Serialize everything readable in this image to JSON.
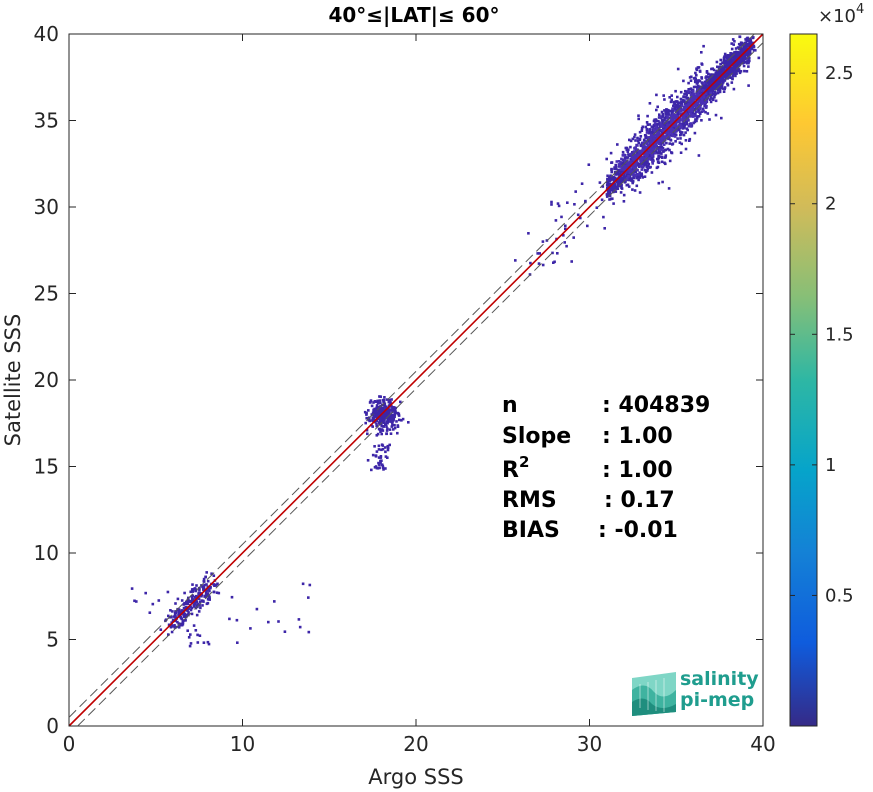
{
  "chart_data": {
    "type": "heatmap",
    "title": "40°≤|LAT|≤ 60°",
    "xlabel": "Argo SSS",
    "ylabel": "Satellite SSS",
    "xlim": [
      0,
      40
    ],
    "ylim": [
      0,
      40
    ],
    "xticks": [
      "0",
      "10",
      "20",
      "30",
      "40"
    ],
    "yticks": [
      "0",
      "5",
      "10",
      "15",
      "20",
      "25",
      "30",
      "35",
      "40"
    ],
    "reference_lines": {
      "identity": "y = x",
      "offset_bands": [
        -0.5,
        0.5
      ]
    },
    "clusters": [
      {
        "x_range": [
          2.5,
          14
        ],
        "y_range": [
          4.2,
          9.5
        ],
        "center": [
          7.2,
          7.2
        ],
        "density": "low"
      },
      {
        "x_range": [
          16.5,
          19.2
        ],
        "y_range": [
          14.7,
          19.2
        ],
        "center": [
          18.2,
          18
        ],
        "density": "medium"
      },
      {
        "x_range": [
          26,
          40
        ],
        "y_range": [
          26,
          39.8
        ],
        "center": [
          34,
          34
        ],
        "density": "high"
      }
    ],
    "colorbar": {
      "exponent_label": "×10",
      "exponent_power": "4",
      "ticks": [
        "0.5",
        "1",
        "1.5",
        "2",
        "2.5"
      ],
      "range": [
        0,
        2.65
      ],
      "colormap": "parula"
    },
    "stats": [
      {
        "key": "n",
        "value": ": 404839"
      },
      {
        "key": "Slope",
        "value": ": 1.00"
      },
      {
        "key": "R",
        "sup": "2",
        "value": ": 1.00"
      },
      {
        "key": "RMS",
        "value": ": 0.17"
      },
      {
        "key": "BIAS",
        "value": ": -0.01"
      }
    ]
  },
  "logo": {
    "line1": "salinity",
    "line2": "pi-mep"
  },
  "colors": {
    "identity_line": "#c00000",
    "offset_line": "#555555",
    "scatter": "#3d26a8"
  }
}
